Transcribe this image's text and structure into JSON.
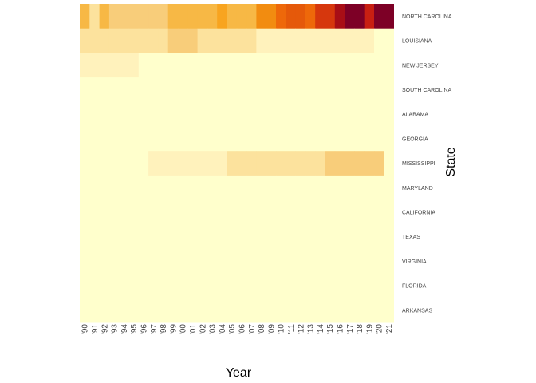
{
  "chart_data": {
    "type": "heatmap",
    "title": "",
    "xlabel": "Year",
    "ylabel": "State",
    "x": [
      "'90",
      "'91",
      "'92",
      "'93",
      "'94",
      "'95",
      "'96",
      "'97",
      "'98",
      "'99",
      "'00",
      "'01",
      "'02",
      "'03",
      "'04",
      "'05",
      "'06",
      "'07",
      "'08",
      "'09",
      "'10",
      "'11",
      "'12",
      "'13",
      "'14",
      "'15",
      "'16",
      "'17",
      "'18",
      "'19",
      "'20",
      "'21"
    ],
    "y": [
      "NORTH CAROLINA",
      "LOUISIANA",
      "NEW JERSEY",
      "SOUTH CAROLINA",
      "ALABAMA",
      "GEORGIA",
      "MISSISSIPPI",
      "MARYLAND",
      "CALIFORNIA",
      "TEXAS",
      "VIRGINIA",
      "FLORIDA",
      "ARKANSAS"
    ],
    "values": [
      [
        4,
        2,
        4,
        3,
        3,
        3,
        3,
        3,
        3,
        4,
        4,
        4,
        4,
        4,
        5,
        4,
        4,
        4,
        6,
        6,
        7,
        8,
        8,
        7,
        9,
        9,
        11,
        12,
        12,
        10,
        12,
        12
      ],
      [
        2,
        2,
        2,
        2,
        2,
        2,
        2,
        2,
        2,
        3,
        3,
        3,
        2,
        2,
        2,
        2,
        2,
        2,
        1,
        1,
        1,
        1,
        1,
        1,
        1,
        1,
        1,
        1,
        1,
        1,
        0,
        0
      ],
      [
        1,
        1,
        1,
        1,
        1,
        1,
        0,
        0,
        0,
        0,
        0,
        0,
        0,
        0,
        0,
        0,
        0,
        0,
        0,
        0,
        0,
        0,
        0,
        0,
        0,
        0,
        0,
        0,
        0,
        0,
        0,
        0
      ],
      [
        0,
        0,
        0,
        0,
        0,
        0,
        0,
        0,
        0,
        0,
        0,
        0,
        0,
        0,
        0,
        0,
        0,
        0,
        0,
        0,
        0,
        0,
        0,
        0,
        0,
        0,
        0,
        0,
        0,
        0,
        0,
        0
      ],
      [
        0,
        0,
        0,
        0,
        0,
        0,
        0,
        0,
        0,
        0,
        0,
        0,
        0,
        0,
        0,
        0,
        0,
        0,
        0,
        0,
        0,
        0,
        0,
        0,
        0,
        0,
        0,
        0,
        0,
        0,
        0,
        0
      ],
      [
        0,
        0,
        0,
        0,
        0,
        0,
        0,
        0,
        0,
        0,
        0,
        0,
        0,
        0,
        0,
        0,
        0,
        0,
        0,
        0,
        0,
        0,
        0,
        0,
        0,
        0,
        0,
        0,
        0,
        0,
        0,
        0
      ],
      [
        0,
        0,
        0,
        0,
        0,
        0,
        0,
        1,
        1,
        1,
        1,
        1,
        1,
        1,
        1,
        2,
        2,
        2,
        2,
        2,
        2,
        2,
        2,
        2,
        2,
        3,
        3,
        3,
        3,
        3,
        3,
        0
      ],
      [
        0,
        0,
        0,
        0,
        0,
        0,
        0,
        0,
        0,
        0,
        0,
        0,
        0,
        0,
        0,
        0,
        0,
        0,
        0,
        0,
        0,
        0,
        0,
        0,
        0,
        0,
        0,
        0,
        0,
        0,
        0,
        0
      ],
      [
        0,
        0,
        0,
        0,
        0,
        0,
        0,
        0,
        0,
        0,
        0,
        0,
        0,
        0,
        0,
        0,
        0,
        0,
        0,
        0,
        0,
        0,
        0,
        0,
        0,
        0,
        0,
        0,
        0,
        0,
        0,
        0
      ],
      [
        0,
        0,
        0,
        0,
        0,
        0,
        0,
        0,
        0,
        0,
        0,
        0,
        0,
        0,
        0,
        0,
        0,
        0,
        0,
        0,
        0,
        0,
        0,
        0,
        0,
        0,
        0,
        0,
        0,
        0,
        0,
        0
      ],
      [
        0,
        0,
        0,
        0,
        0,
        0,
        0,
        0,
        0,
        0,
        0,
        0,
        0,
        0,
        0,
        0,
        0,
        0,
        0,
        0,
        0,
        0,
        0,
        0,
        0,
        0,
        0,
        0,
        0,
        0,
        0,
        0
      ],
      [
        0,
        0,
        0,
        0,
        0,
        0,
        0,
        0,
        0,
        0,
        0,
        0,
        0,
        0,
        0,
        0,
        0,
        0,
        0,
        0,
        0,
        0,
        0,
        0,
        0,
        0,
        0,
        0,
        0,
        0,
        0,
        0
      ],
      [
        0,
        0,
        0,
        0,
        0,
        0,
        0,
        0,
        0,
        0,
        0,
        0,
        0,
        0,
        0,
        0,
        0,
        0,
        0,
        0,
        0,
        0,
        0,
        0,
        0,
        0,
        0,
        0,
        0,
        0,
        0,
        0
      ]
    ],
    "vlim": [
      0,
      12
    ],
    "colorscale": [
      "#ffffcc",
      "#fff2bc",
      "#fce29d",
      "#f8cd7a",
      "#f7b845",
      "#f8a41f",
      "#f28c10",
      "#ee680a",
      "#e5590a",
      "#d6370d",
      "#c81f12",
      "#a80e16",
      "#7d0026"
    ],
    "legend": "none",
    "grid": false
  }
}
